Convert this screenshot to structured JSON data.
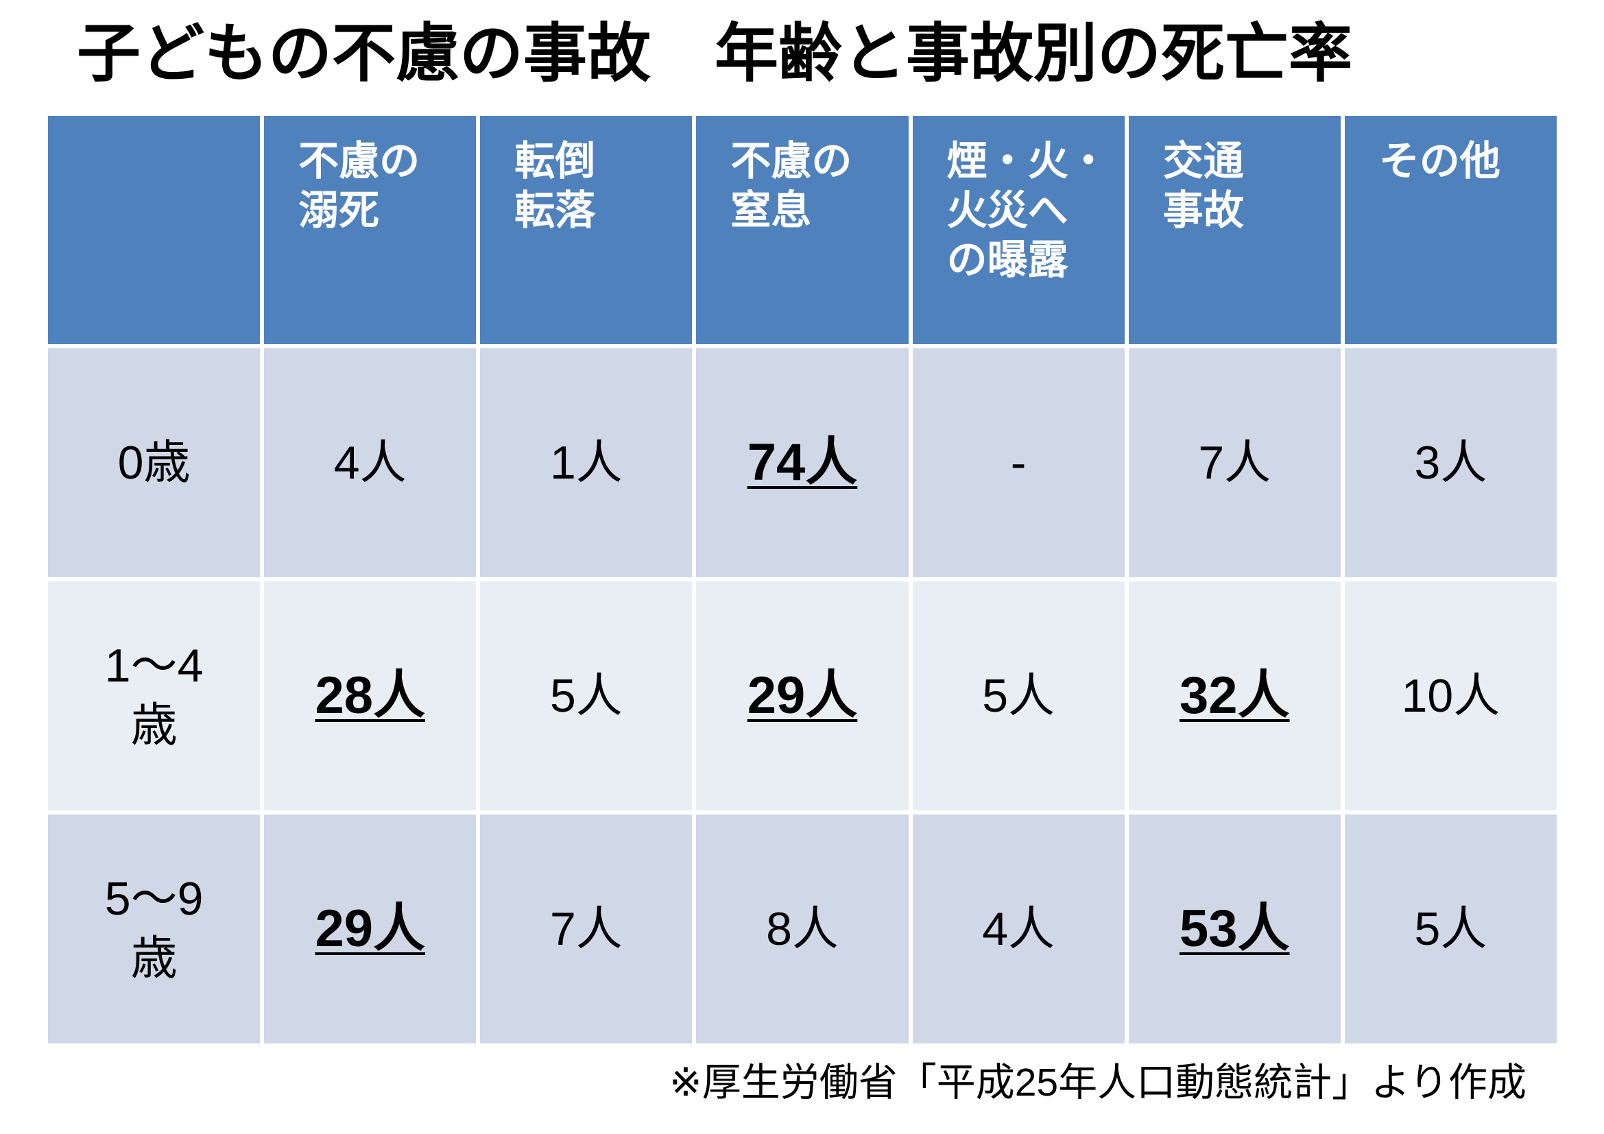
{
  "colors": {
    "page_bg": "#FFFFFF",
    "header_bg": "#4F81BD",
    "band_dark": "#D0D8E8",
    "band_light": "#E9EDF4",
    "header_text": "#FFFFFF",
    "body_text": "#000000"
  },
  "chart_data": {
    "type": "table",
    "title": "子どもの不慮の事故　年齢と事故別の死亡率",
    "columns": [
      "不慮の\n溺死",
      "転倒\n転落",
      "不慮の\n窒息",
      "煙・火・\n火災へ\nの曝露",
      "交通\n事故",
      "その他"
    ],
    "rows": [
      {
        "label": "0歳",
        "values": [
          "4人",
          "1人",
          "74人",
          "-",
          "7人",
          "3人"
        ],
        "emphasized": [
          false,
          false,
          true,
          false,
          false,
          false
        ]
      },
      {
        "label": "1～4\n歳",
        "values": [
          "28人",
          "5人",
          "29人",
          "5人",
          "32人",
          "10人"
        ],
        "emphasized": [
          true,
          false,
          true,
          false,
          true,
          false
        ]
      },
      {
        "label": "5～9\n歳",
        "values": [
          "29人",
          "7人",
          "8人",
          "4人",
          "53人",
          "5人"
        ],
        "emphasized": [
          true,
          false,
          false,
          false,
          true,
          false
        ]
      }
    ],
    "source_note": "※厚生労働省「平成25年人口動態統計」より作成"
  }
}
